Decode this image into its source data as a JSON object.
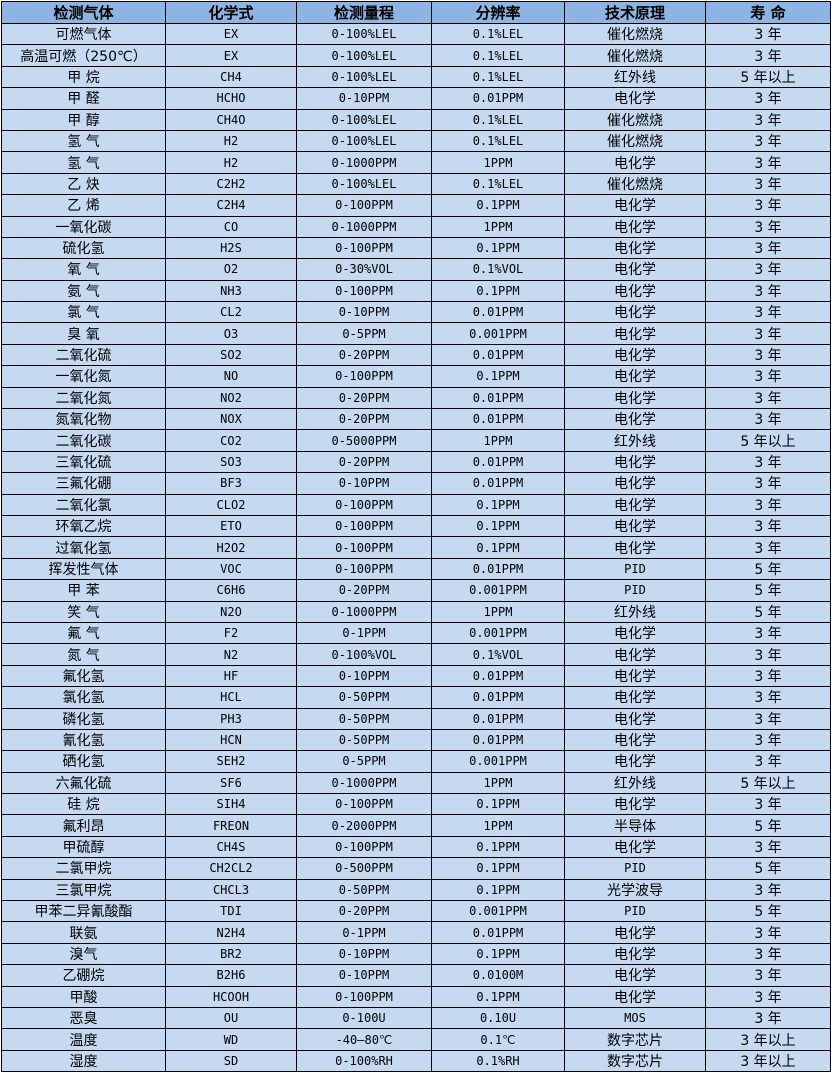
{
  "colors": {
    "header_bg": "#8db4e2",
    "row_bg": "#c5d9f1",
    "border": "#000000"
  },
  "headers": [
    "检测气体",
    "化学式",
    "检测量程",
    "分辨率",
    "技术原理",
    "寿 命"
  ],
  "rows": [
    [
      "可燃气体",
      "EX",
      "0-100%LEL",
      "0.1%LEL",
      "催化燃烧",
      "3 年"
    ],
    [
      "高温可燃（250℃）",
      "EX",
      "0-100%LEL",
      "0.1%LEL",
      "催化燃烧",
      "3 年"
    ],
    [
      "甲 烷",
      "CH4",
      "0-100%LEL",
      "0.1%LEL",
      "红外线",
      "5 年以上"
    ],
    [
      "甲 醛",
      "HCHO",
      "0-10PPM",
      "0.01PPM",
      "电化学",
      "3 年"
    ],
    [
      "甲 醇",
      "CH4O",
      "0-100%LEL",
      "0.1%LEL",
      "催化燃烧",
      "3 年"
    ],
    [
      "氢 气",
      "H2",
      "0-100%LEL",
      "0.1%LEL",
      "催化燃烧",
      "3 年"
    ],
    [
      "氢 气",
      "H2",
      "0-1000PPM",
      "1PPM",
      "电化学",
      "3 年"
    ],
    [
      "乙 炔",
      "C2H2",
      "0-100%LEL",
      "0.1%LEL",
      "催化燃烧",
      "3 年"
    ],
    [
      "乙 烯",
      "C2H4",
      "0-100PPM",
      "0.1PPM",
      "电化学",
      "3 年"
    ],
    [
      "一氧化碳",
      "CO",
      "0-1000PPM",
      "1PPM",
      "电化学",
      "3 年"
    ],
    [
      "硫化氢",
      "H2S",
      "0-100PPM",
      "0.1PPM",
      "电化学",
      "3 年"
    ],
    [
      "氧 气",
      "O2",
      "0-30%VOL",
      "0.1%VOL",
      "电化学",
      "3 年"
    ],
    [
      "氨 气",
      "NH3",
      "0-100PPM",
      "0.1PPM",
      "电化学",
      "3 年"
    ],
    [
      "氯 气",
      "CL2",
      "0-10PPM",
      "0.01PPM",
      "电化学",
      "3 年"
    ],
    [
      "臭 氧",
      "O3",
      "0-5PPM",
      "0.001PPM",
      "电化学",
      "3 年"
    ],
    [
      "二氧化硫",
      "SO2",
      "0-20PPM",
      "0.01PPM",
      "电化学",
      "3 年"
    ],
    [
      "一氧化氮",
      "NO",
      "0-100PPM",
      "0.1PPM",
      "电化学",
      "3 年"
    ],
    [
      "二氧化氮",
      "NO2",
      "0-20PPM",
      "0.01PPM",
      "电化学",
      "3 年"
    ],
    [
      "氮氧化物",
      "NOX",
      "0-20PPM",
      "0.01PPM",
      "电化学",
      "3 年"
    ],
    [
      "二氧化碳",
      "CO2",
      "0-5000PPM",
      "1PPM",
      "红外线",
      "5 年以上"
    ],
    [
      "三氧化硫",
      "SO3",
      "0-20PPM",
      "0.01PPM",
      "电化学",
      "3 年"
    ],
    [
      "三氟化硼",
      "BF3",
      "0-10PPM",
      "0.01PPM",
      "电化学",
      "3 年"
    ],
    [
      "二氧化氯",
      "CLO2",
      "0-100PPM",
      "0.1PPM",
      "电化学",
      "3 年"
    ],
    [
      "环氧乙烷",
      "ETO",
      "0-100PPM",
      "0.1PPM",
      "电化学",
      "3 年"
    ],
    [
      "过氧化氢",
      "H2O2",
      "0-100PPM",
      "0.1PPM",
      "电化学",
      "3 年"
    ],
    [
      "挥发性气体",
      "VOC",
      "0-100PPM",
      "0.01PPM",
      "PID",
      "5 年"
    ],
    [
      "甲 苯",
      "C6H6",
      "0-20PPM",
      "0.001PPM",
      "PID",
      "5 年"
    ],
    [
      "笑 气",
      "N2O",
      "0-1000PPM",
      "1PPM",
      "红外线",
      "5 年"
    ],
    [
      "氟 气",
      "F2",
      "0-1PPM",
      "0.001PPM",
      "电化学",
      "3 年"
    ],
    [
      "氮 气",
      "N2",
      "0-100%VOL",
      "0.1%VOL",
      "电化学",
      "3 年"
    ],
    [
      "氟化氢",
      "HF",
      "0-10PPM",
      "0.01PPM",
      "电化学",
      "3 年"
    ],
    [
      "氯化氢",
      "HCL",
      "0-50PPM",
      "0.01PPM",
      "电化学",
      "3 年"
    ],
    [
      "磷化氢",
      "PH3",
      "0-50PPM",
      "0.01PPM",
      "电化学",
      "3 年"
    ],
    [
      "氰化氢",
      "HCN",
      "0-50PPM",
      "0.01PPM",
      "电化学",
      "3 年"
    ],
    [
      "硒化氢",
      "SEH2",
      "0-5PPM",
      "0.001PPM",
      "电化学",
      "3 年"
    ],
    [
      "六氟化硫",
      "SF6",
      "0-1000PPM",
      "1PPM",
      "红外线",
      "5 年以上"
    ],
    [
      "硅 烷",
      "SIH4",
      "0-100PPM",
      "0.1PPM",
      "电化学",
      "3 年"
    ],
    [
      "氟利昂",
      "FREON",
      "0-2000PPM",
      "1PPM",
      "半导体",
      "5 年"
    ],
    [
      "甲硫醇",
      "CH4S",
      "0-100PPM",
      "0.1PPM",
      "电化学",
      "3 年"
    ],
    [
      "二氯甲烷",
      "CH2CL2",
      "0-500PPM",
      "0.1PPM",
      "PID",
      "5 年"
    ],
    [
      "三氯甲烷",
      "CHCL3",
      "0-50PPM",
      "0.1PPM",
      "光学波导",
      "3 年"
    ],
    [
      "甲苯二异氰酸酯",
      "TDI",
      "0-20PPM",
      "0.001PPM",
      "PID",
      "5 年"
    ],
    [
      "联氨",
      "N2H4",
      "0-1PPM",
      "0.01PPM",
      "电化学",
      "3 年"
    ],
    [
      "溴气",
      "BR2",
      "0-10PPM",
      "0.1PPM",
      "电化学",
      "3 年"
    ],
    [
      "乙硼烷",
      "B2H6",
      "0-10PPM",
      "0.0100M",
      "电化学",
      "3 年"
    ],
    [
      "甲酸",
      "HCOOH",
      "0-100PPM",
      "0.1PPM",
      "电化学",
      "3 年"
    ],
    [
      "恶臭",
      "OU",
      "0-100U",
      "0.10U",
      "MOS",
      "3 年"
    ],
    [
      "温度",
      "WD",
      "-40—80℃",
      "0.1℃",
      "数字芯片",
      "3 年以上"
    ],
    [
      "湿度",
      "SD",
      "0-100%RH",
      "0.1%RH",
      "数字芯片",
      "3 年以上"
    ]
  ]
}
